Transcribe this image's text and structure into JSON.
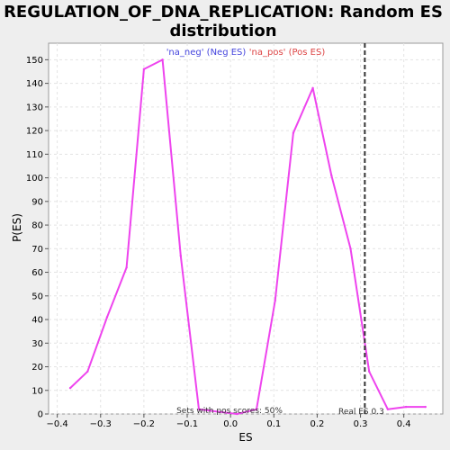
{
  "chart_data": {
    "type": "line",
    "title_lines": [
      "REGULATION_OF_DNA_REPLICATION: Random ES",
      "distribution"
    ],
    "xlabel": "ES",
    "ylabel": "P(ES)",
    "xlim": [
      -0.42,
      0.49
    ],
    "ylim": [
      0,
      157
    ],
    "xticks": [
      -0.4,
      -0.3,
      -0.2,
      -0.1,
      0.0,
      0.1,
      0.2,
      0.3,
      0.4
    ],
    "xtick_labels": [
      "−0.4",
      "−0.3",
      "−0.2",
      "−0.1",
      "0.0",
      "0.1",
      "0.2",
      "0.3",
      "0.4"
    ],
    "yticks": [
      0,
      10,
      20,
      30,
      40,
      50,
      60,
      70,
      80,
      90,
      100,
      110,
      120,
      130,
      140,
      150
    ],
    "ytick_labels": [
      "0",
      "10",
      "20",
      "30",
      "40",
      "50",
      "60",
      "70",
      "80",
      "90",
      "100",
      "110",
      "120",
      "130",
      "140",
      "150"
    ],
    "grid": true,
    "legend_placement": "top-center",
    "legend": [
      {
        "label": "'na_neg' (Neg ES)",
        "color": "#4444dd"
      },
      {
        "label": "'na_pos' (Pos ES)",
        "color": "#dd4444"
      }
    ],
    "series": [
      {
        "color": "#ee44ee",
        "x": [
          -0.37,
          -0.33,
          -0.285,
          -0.24,
          -0.2,
          -0.157,
          -0.115,
          -0.073,
          -0.03,
          0.015,
          0.06,
          0.103,
          0.145,
          0.19,
          0.233,
          0.277,
          0.32,
          0.363,
          0.405,
          0.45
        ],
        "y": [
          11,
          18,
          41,
          62,
          146,
          150,
          67,
          2,
          1,
          0,
          2,
          48,
          119,
          138,
          101,
          70,
          18,
          2,
          3,
          3
        ]
      }
    ],
    "real_es": 0.31,
    "real_es_label": "Real ES 0.3",
    "pos_scores_label": "Sets with pos scores: 50%"
  }
}
